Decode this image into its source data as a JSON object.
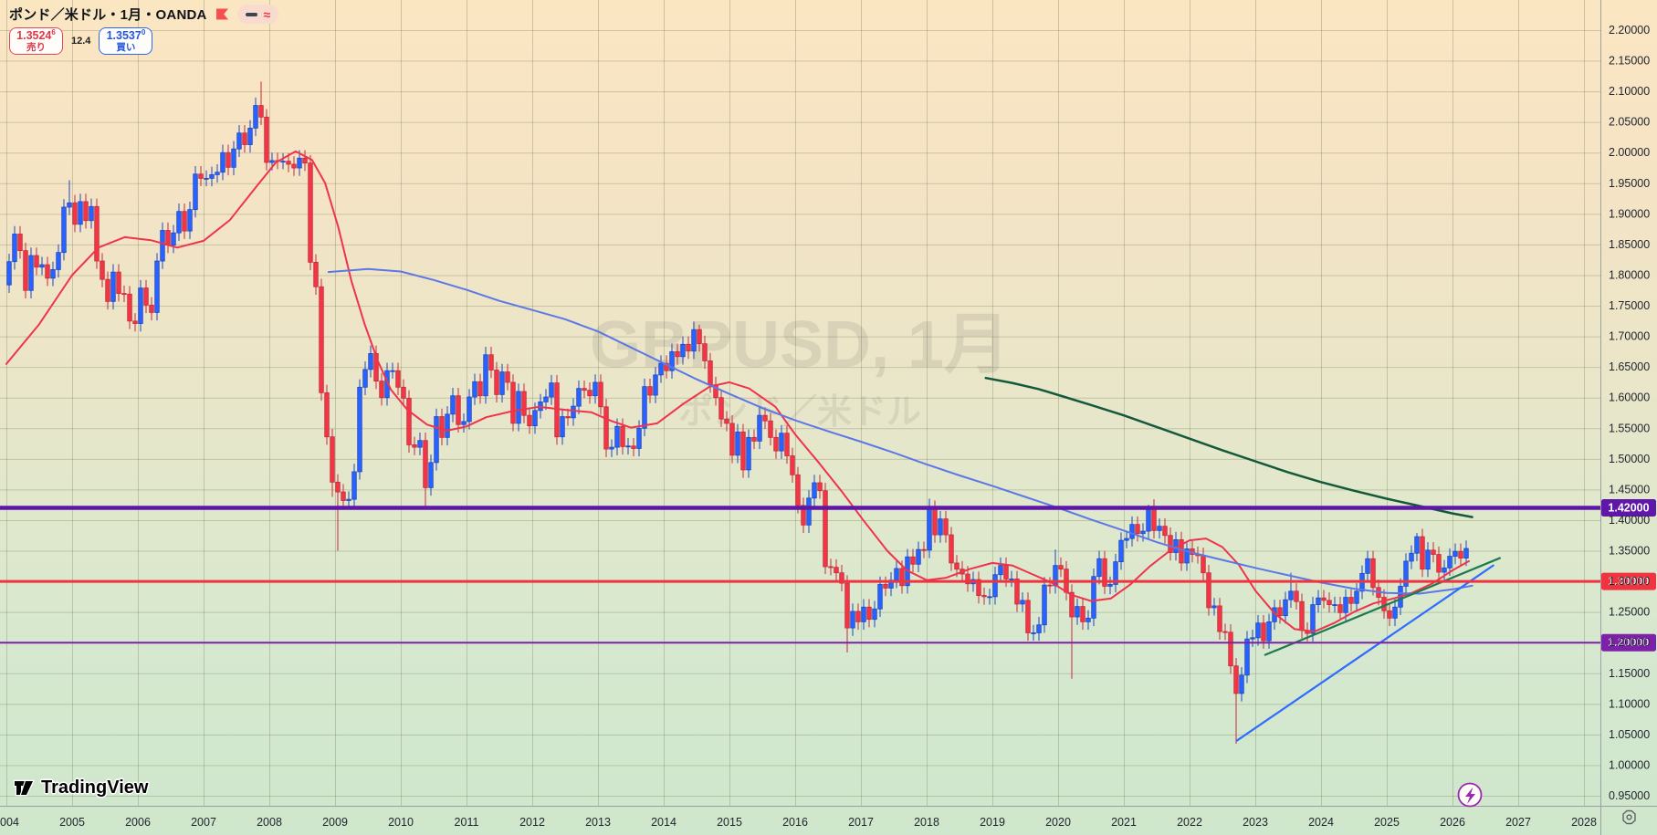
{
  "header": {
    "symbol_title": "ポンド／米ドル・1月・OANDA",
    "sell": {
      "price": "1.3524",
      "sup": "6",
      "label": "売り"
    },
    "spread": "12.4",
    "buy": {
      "price": "1.3537",
      "sup": "0",
      "label": "買い"
    },
    "colors": {
      "sell": "#e0384a",
      "buy": "#2356e0"
    }
  },
  "watermark": {
    "title": "GBPUSD, 1月",
    "subtitle": "ポンド／米ドル"
  },
  "branding": {
    "logo_text": "TradingView"
  },
  "levels": [
    {
      "price": 1.42,
      "label": "1.42000",
      "color": "#5e17a8",
      "line_width": 4.5
    },
    {
      "price": 1.3,
      "label": "1.30000",
      "color": "#ef333f",
      "line_width": 3
    },
    {
      "price": 1.2,
      "label": "1.20000",
      "color": "#7d22a8",
      "line_width": 2
    }
  ],
  "trendlines": [
    {
      "name": "blue-ascending-trendline",
      "from": [
        2022.72,
        1.04
      ],
      "to": [
        2026.62,
        1.326
      ],
      "color": "#2e6bff",
      "width": 2.2
    },
    {
      "name": "green-ascending-trendline",
      "from": [
        2023.15,
        1.18
      ],
      "to": [
        2026.72,
        1.338
      ],
      "color": "#1d7a4f",
      "width": 2.2
    }
  ],
  "moving_averages": [
    {
      "name": "ma-fast-red",
      "color": "#f0334c",
      "width": 2,
      "points": [
        [
          2004.0,
          1.655
        ],
        [
          2004.5,
          1.72
        ],
        [
          2005.0,
          1.8
        ],
        [
          2005.4,
          1.845
        ],
        [
          2005.8,
          1.862
        ],
        [
          2006.2,
          1.857
        ],
        [
          2006.6,
          1.845
        ],
        [
          2007.0,
          1.856
        ],
        [
          2007.4,
          1.89
        ],
        [
          2007.8,
          1.944
        ],
        [
          2008.1,
          1.984
        ],
        [
          2008.4,
          2.002
        ],
        [
          2008.65,
          1.988
        ],
        [
          2008.85,
          1.95
        ],
        [
          2009.05,
          1.878
        ],
        [
          2009.25,
          1.79
        ],
        [
          2009.45,
          1.72
        ],
        [
          2009.65,
          1.66
        ],
        [
          2009.85,
          1.613
        ],
        [
          2010.1,
          1.58
        ],
        [
          2010.4,
          1.556
        ],
        [
          2010.7,
          1.546
        ],
        [
          2011.0,
          1.553
        ],
        [
          2011.3,
          1.568
        ],
        [
          2011.7,
          1.578
        ],
        [
          2012.1,
          1.585
        ],
        [
          2012.5,
          1.58
        ],
        [
          2012.9,
          1.576
        ],
        [
          2013.2,
          1.562
        ],
        [
          2013.5,
          1.551
        ],
        [
          2013.9,
          1.558
        ],
        [
          2014.3,
          1.59
        ],
        [
          2014.7,
          1.618
        ],
        [
          2015.0,
          1.625
        ],
        [
          2015.3,
          1.615
        ],
        [
          2015.7,
          1.585
        ],
        [
          2016.0,
          1.54
        ],
        [
          2016.35,
          1.495
        ],
        [
          2016.7,
          1.448
        ],
        [
          2017.05,
          1.398
        ],
        [
          2017.4,
          1.35
        ],
        [
          2017.7,
          1.318
        ],
        [
          2018.0,
          1.302
        ],
        [
          2018.3,
          1.306
        ],
        [
          2018.65,
          1.32
        ],
        [
          2019.0,
          1.33
        ],
        [
          2019.3,
          1.326
        ],
        [
          2019.6,
          1.312
        ],
        [
          2019.9,
          1.298
        ],
        [
          2020.2,
          1.278
        ],
        [
          2020.5,
          1.268
        ],
        [
          2020.8,
          1.272
        ],
        [
          2021.1,
          1.295
        ],
        [
          2021.4,
          1.325
        ],
        [
          2021.7,
          1.35
        ],
        [
          2022.0,
          1.367
        ],
        [
          2022.25,
          1.37
        ],
        [
          2022.5,
          1.356
        ],
        [
          2022.75,
          1.327
        ],
        [
          2023.0,
          1.285
        ],
        [
          2023.3,
          1.247
        ],
        [
          2023.6,
          1.222
        ],
        [
          2023.9,
          1.218
        ],
        [
          2024.2,
          1.232
        ],
        [
          2024.5,
          1.25
        ],
        [
          2024.8,
          1.264
        ],
        [
          2025.1,
          1.272
        ],
        [
          2025.4,
          1.282
        ],
        [
          2025.7,
          1.297
        ],
        [
          2026.0,
          1.318
        ],
        [
          2026.25,
          1.333
        ]
      ]
    },
    {
      "name": "ma-mid-blue",
      "color": "#5b78e6",
      "width": 2,
      "points": [
        [
          2008.9,
          1.805
        ],
        [
          2009.5,
          1.81
        ],
        [
          2010.0,
          1.806
        ],
        [
          2010.5,
          1.792
        ],
        [
          2011.0,
          1.776
        ],
        [
          2011.5,
          1.758
        ],
        [
          2012.0,
          1.743
        ],
        [
          2012.5,
          1.728
        ],
        [
          2013.0,
          1.708
        ],
        [
          2013.5,
          1.682
        ],
        [
          2014.0,
          1.656
        ],
        [
          2014.5,
          1.63
        ],
        [
          2015.0,
          1.606
        ],
        [
          2015.5,
          1.583
        ],
        [
          2016.0,
          1.563
        ],
        [
          2016.5,
          1.545
        ],
        [
          2017.0,
          1.528
        ],
        [
          2017.5,
          1.51
        ],
        [
          2018.0,
          1.491
        ],
        [
          2018.5,
          1.473
        ],
        [
          2019.0,
          1.456
        ],
        [
          2019.5,
          1.438
        ],
        [
          2020.0,
          1.42
        ],
        [
          2020.5,
          1.401
        ],
        [
          2021.0,
          1.383
        ],
        [
          2021.5,
          1.364
        ],
        [
          2022.0,
          1.348
        ],
        [
          2022.5,
          1.335
        ],
        [
          2023.0,
          1.322
        ],
        [
          2023.5,
          1.31
        ],
        [
          2024.0,
          1.298
        ],
        [
          2024.5,
          1.288
        ],
        [
          2025.0,
          1.281
        ],
        [
          2025.5,
          1.28
        ],
        [
          2026.0,
          1.287
        ],
        [
          2026.3,
          1.293
        ]
      ]
    },
    {
      "name": "ma-slow-green",
      "color": "#14593a",
      "width": 2.5,
      "points": [
        [
          2018.9,
          1.632
        ],
        [
          2019.3,
          1.624
        ],
        [
          2019.7,
          1.614
        ],
        [
          2020.1,
          1.601
        ],
        [
          2020.5,
          1.588
        ],
        [
          2021.0,
          1.571
        ],
        [
          2021.5,
          1.552
        ],
        [
          2022.0,
          1.533
        ],
        [
          2022.5,
          1.514
        ],
        [
          2023.0,
          1.496
        ],
        [
          2023.5,
          1.478
        ],
        [
          2024.0,
          1.462
        ],
        [
          2024.5,
          1.448
        ],
        [
          2025.0,
          1.435
        ],
        [
          2025.5,
          1.423
        ],
        [
          2026.0,
          1.411
        ],
        [
          2026.3,
          1.405
        ]
      ]
    }
  ],
  "chart_data": {
    "type": "candlestick",
    "symbol": "GBPUSD",
    "timeframe": "1月",
    "provider": "OANDA",
    "start_month": "2004-01",
    "months_count": 267,
    "first_open": 1.784,
    "closes": [
      1.822,
      1.867,
      1.84,
      1.775,
      1.832,
      1.813,
      1.817,
      1.795,
      1.809,
      1.837,
      1.911,
      1.918,
      1.883,
      1.92,
      1.889,
      1.912,
      1.823,
      1.793,
      1.757,
      1.805,
      1.77,
      1.769,
      1.725,
      1.721,
      1.779,
      1.751,
      1.739,
      1.823,
      1.873,
      1.849,
      1.869,
      1.904,
      1.872,
      1.907,
      1.965,
      1.958,
      1.958,
      1.964,
      1.968,
      2.0,
      1.976,
      2.006,
      2.032,
      2.013,
      2.04,
      2.077,
      2.058,
      1.984,
      1.987,
      1.986,
      1.986,
      1.981,
      1.975,
      1.991,
      1.983,
      1.821,
      1.781,
      1.608,
      1.536,
      1.462,
      1.446,
      1.432,
      1.434,
      1.479,
      1.617,
      1.646,
      1.672,
      1.627,
      1.6,
      1.644,
      1.644,
      1.617,
      1.599,
      1.523,
      1.519,
      1.53,
      1.453,
      1.494,
      1.569,
      1.535,
      1.573,
      1.603,
      1.556,
      1.561,
      1.601,
      1.626,
      1.603,
      1.67,
      1.645,
      1.605,
      1.642,
      1.625,
      1.558,
      1.61,
      1.571,
      1.554,
      1.579,
      1.593,
      1.601,
      1.624,
      1.536,
      1.569,
      1.567,
      1.586,
      1.615,
      1.612,
      1.603,
      1.625,
      1.585,
      1.516,
      1.519,
      1.553,
      1.52,
      1.521,
      1.517,
      1.55,
      1.618,
      1.604,
      1.637,
      1.656,
      1.644,
      1.675,
      1.667,
      1.687,
      1.676,
      1.711,
      1.688,
      1.66,
      1.621,
      1.6,
      1.565,
      1.558,
      1.506,
      1.544,
      1.482,
      1.535,
      1.529,
      1.571,
      1.562,
      1.535,
      1.513,
      1.542,
      1.505,
      1.474,
      1.424,
      1.392,
      1.436,
      1.461,
      1.448,
      1.324,
      1.323,
      1.314,
      1.297,
      1.224,
      1.251,
      1.234,
      1.258,
      1.238,
      1.255,
      1.295,
      1.289,
      1.302,
      1.321,
      1.293,
      1.34,
      1.328,
      1.352,
      1.351,
      1.419,
      1.376,
      1.402,
      1.376,
      1.33,
      1.32,
      1.312,
      1.296,
      1.303,
      1.277,
      1.275,
      1.275,
      1.311,
      1.326,
      1.304,
      1.304,
      1.263,
      1.269,
      1.216,
      1.216,
      1.229,
      1.294,
      1.293,
      1.326,
      1.32,
      1.282,
      1.242,
      1.259,
      1.234,
      1.24,
      1.308,
      1.337,
      1.292,
      1.295,
      1.332,
      1.367,
      1.37,
      1.393,
      1.378,
      1.382,
      1.421,
      1.383,
      1.39,
      1.375,
      1.347,
      1.368,
      1.33,
      1.353,
      1.344,
      1.342,
      1.314,
      1.257,
      1.26,
      1.218,
      1.217,
      1.162,
      1.117,
      1.147,
      1.206,
      1.208,
      1.232,
      1.203,
      1.234,
      1.257,
      1.244,
      1.27,
      1.284,
      1.267,
      1.22,
      1.215,
      1.262,
      1.273,
      1.269,
      1.262,
      1.262,
      1.249,
      1.274,
      1.264,
      1.284,
      1.313,
      1.337,
      1.29,
      1.274,
      1.252,
      1.24,
      1.258,
      1.292,
      1.333,
      1.346,
      1.373,
      1.32,
      1.351,
      1.344,
      1.315,
      1.322,
      1.341,
      1.349,
      1.338,
      1.3537
    ],
    "wick_default": 0.013,
    "wick_overrides": {
      "11": [
        1.955,
        null
      ],
      "46": [
        2.116,
        null
      ],
      "59": [
        null,
        1.438
      ],
      "60": [
        null,
        1.35
      ],
      "76": [
        null,
        1.423
      ],
      "126": [
        1.719,
        null
      ],
      "149": [
        null,
        1.312
      ],
      "153": [
        null,
        1.184
      ],
      "168": [
        1.435,
        null
      ],
      "191": [
        1.352,
        null
      ],
      "194": [
        null,
        1.141
      ],
      "208": [
        1.425,
        null
      ],
      "224": [
        null,
        1.035
      ],
      "234": [
        1.314,
        null
      ],
      "257": [
        1.379,
        null
      ]
    },
    "up_color": "#2962ff",
    "down_color": "#f23645",
    "ylim": [
      0.95,
      2.2
    ],
    "ytick_step": 0.05,
    "ytick_labels_format_decimals": 5,
    "xticks": [
      2004,
      2005,
      2006,
      2007,
      2008,
      2009,
      2010,
      2011,
      2012,
      2013,
      2014,
      2015,
      2016,
      2017,
      2018,
      2019,
      2020,
      2021,
      2022,
      2023,
      2024,
      2025,
      2026,
      2027,
      2028
    ],
    "grid": true,
    "legend_position": "none"
  }
}
